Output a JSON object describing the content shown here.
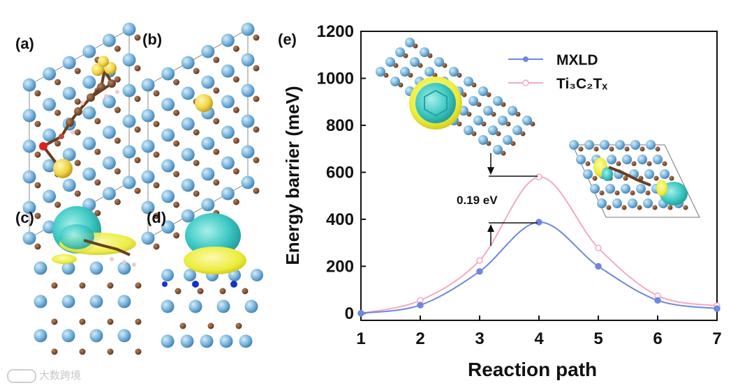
{
  "panels": {
    "a": "(a)",
    "b": "(b)",
    "c": "(c)",
    "d": "(d)",
    "e": "(e)"
  },
  "annotation": {
    "barrier_diff": "0.19 eV"
  },
  "watermark": {
    "text": "大数跨境"
  },
  "colors": {
    "mxld": "#6f86e2",
    "ti3c2tx": "#f3a9c3",
    "ti_atom": "#7cb7de",
    "c_atom": "#7a4a2c",
    "s_atom": "#f2d54a",
    "cyan_isosurface": "#3fc9c4",
    "yellow_isosurface": "#ecec3c"
  },
  "chart_data": {
    "type": "line",
    "title": "",
    "xlabel": "Reaction path",
    "ylabel": "Energy barrier (meV)",
    "xlim": [
      1,
      7
    ],
    "ylim": [
      -30,
      1200
    ],
    "xticks": [
      "1",
      "2",
      "3",
      "4",
      "5",
      "6",
      "7"
    ],
    "yticks": [
      "0",
      "200",
      "400",
      "600",
      "800",
      "1000",
      "1200"
    ],
    "x": [
      1,
      2,
      3,
      4,
      5,
      6,
      7
    ],
    "series": [
      {
        "name": "MXLD",
        "legend_label": "MXLD",
        "color": "#6f86e2",
        "values": [
          0,
          35,
          178,
          388,
          200,
          55,
          20
        ]
      },
      {
        "name": "Ti3C2Tx",
        "legend_label": "Ti₃C₂Tₓ",
        "color": "#f3a9c3",
        "values": [
          0,
          55,
          225,
          580,
          278,
          75,
          32
        ]
      }
    ],
    "legend": "top-center",
    "annotations": [
      {
        "text": "0.19 eV",
        "between_y": [
          388,
          580
        ]
      }
    ]
  }
}
